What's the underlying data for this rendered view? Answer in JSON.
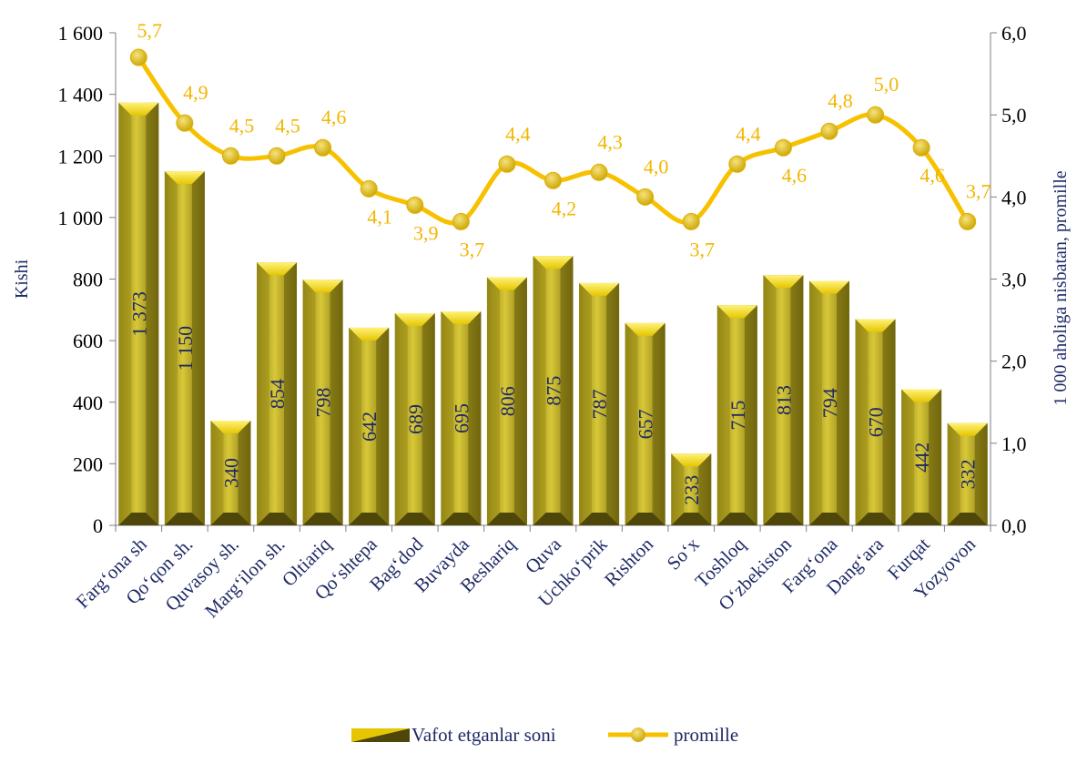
{
  "chart_data": {
    "type": "bar",
    "categories": [
      "Farg‘ona sh",
      "Qo‘qon sh.",
      "Quvasoy sh.",
      "Marg‘ilon sh.",
      "Oltiariq",
      "Qo‘shtepa",
      "Bag‘dod",
      "Buvayda",
      "Beshariq",
      "Quva",
      "Uchko‘prik",
      "Rishton",
      "So‘x",
      "Toshloq",
      "O‘zbekiston",
      "Farg‘ona",
      "Dang‘ara",
      "Furqat",
      "Yozyovon"
    ],
    "series": [
      {
        "name": "Vafot etganlar soni",
        "type": "bar",
        "axis": "left",
        "values": [
          1373,
          1150,
          340,
          854,
          798,
          642,
          689,
          695,
          806,
          875,
          787,
          657,
          233,
          715,
          813,
          794,
          670,
          442,
          332
        ],
        "labels": [
          "1 373",
          "1 150",
          "340",
          "854",
          "798",
          "642",
          "689",
          "695",
          "806",
          "875",
          "787",
          "657",
          "233",
          "715",
          "813",
          "794",
          "670",
          "442",
          "332"
        ],
        "color": "#c8b400"
      },
      {
        "name": "promille",
        "type": "line",
        "axis": "right",
        "values": [
          5.7,
          4.9,
          4.5,
          4.5,
          4.6,
          4.1,
          3.9,
          3.7,
          4.4,
          4.2,
          4.3,
          4.0,
          3.7,
          4.4,
          4.6,
          4.8,
          5.0,
          4.6,
          3.7
        ],
        "labels": [
          "5,7",
          "4,9",
          "4,5",
          "4,5",
          "4,6",
          "4,1",
          "3,9",
          "3,7",
          "4,4",
          "4,2",
          "4,3",
          "4,0",
          "3,7",
          "4,4",
          "4,6",
          "4,8",
          "5,0",
          "4,6",
          "3,7"
        ],
        "color": "#f7c100"
      }
    ],
    "ylabel": "Kishi",
    "ylabel_right": "1 000 aholiga nisbatan, promille",
    "ylim": [
      0,
      1600
    ],
    "ylim_right": [
      0,
      6
    ],
    "yticks": [
      0,
      200,
      400,
      600,
      800,
      1000,
      1200,
      1400,
      1600
    ],
    "yticks_labels": [
      "0",
      "200",
      "400",
      "600",
      "800",
      "1 000",
      "1 200",
      "1 400",
      "1 600"
    ],
    "yticks_right": [
      0,
      1,
      2,
      3,
      4,
      5,
      6
    ],
    "yticks_right_labels": [
      "0,0",
      "1,0",
      "2,0",
      "3,0",
      "4,0",
      "5,0",
      "6,0"
    ],
    "grid": false,
    "legend": "bottom"
  }
}
